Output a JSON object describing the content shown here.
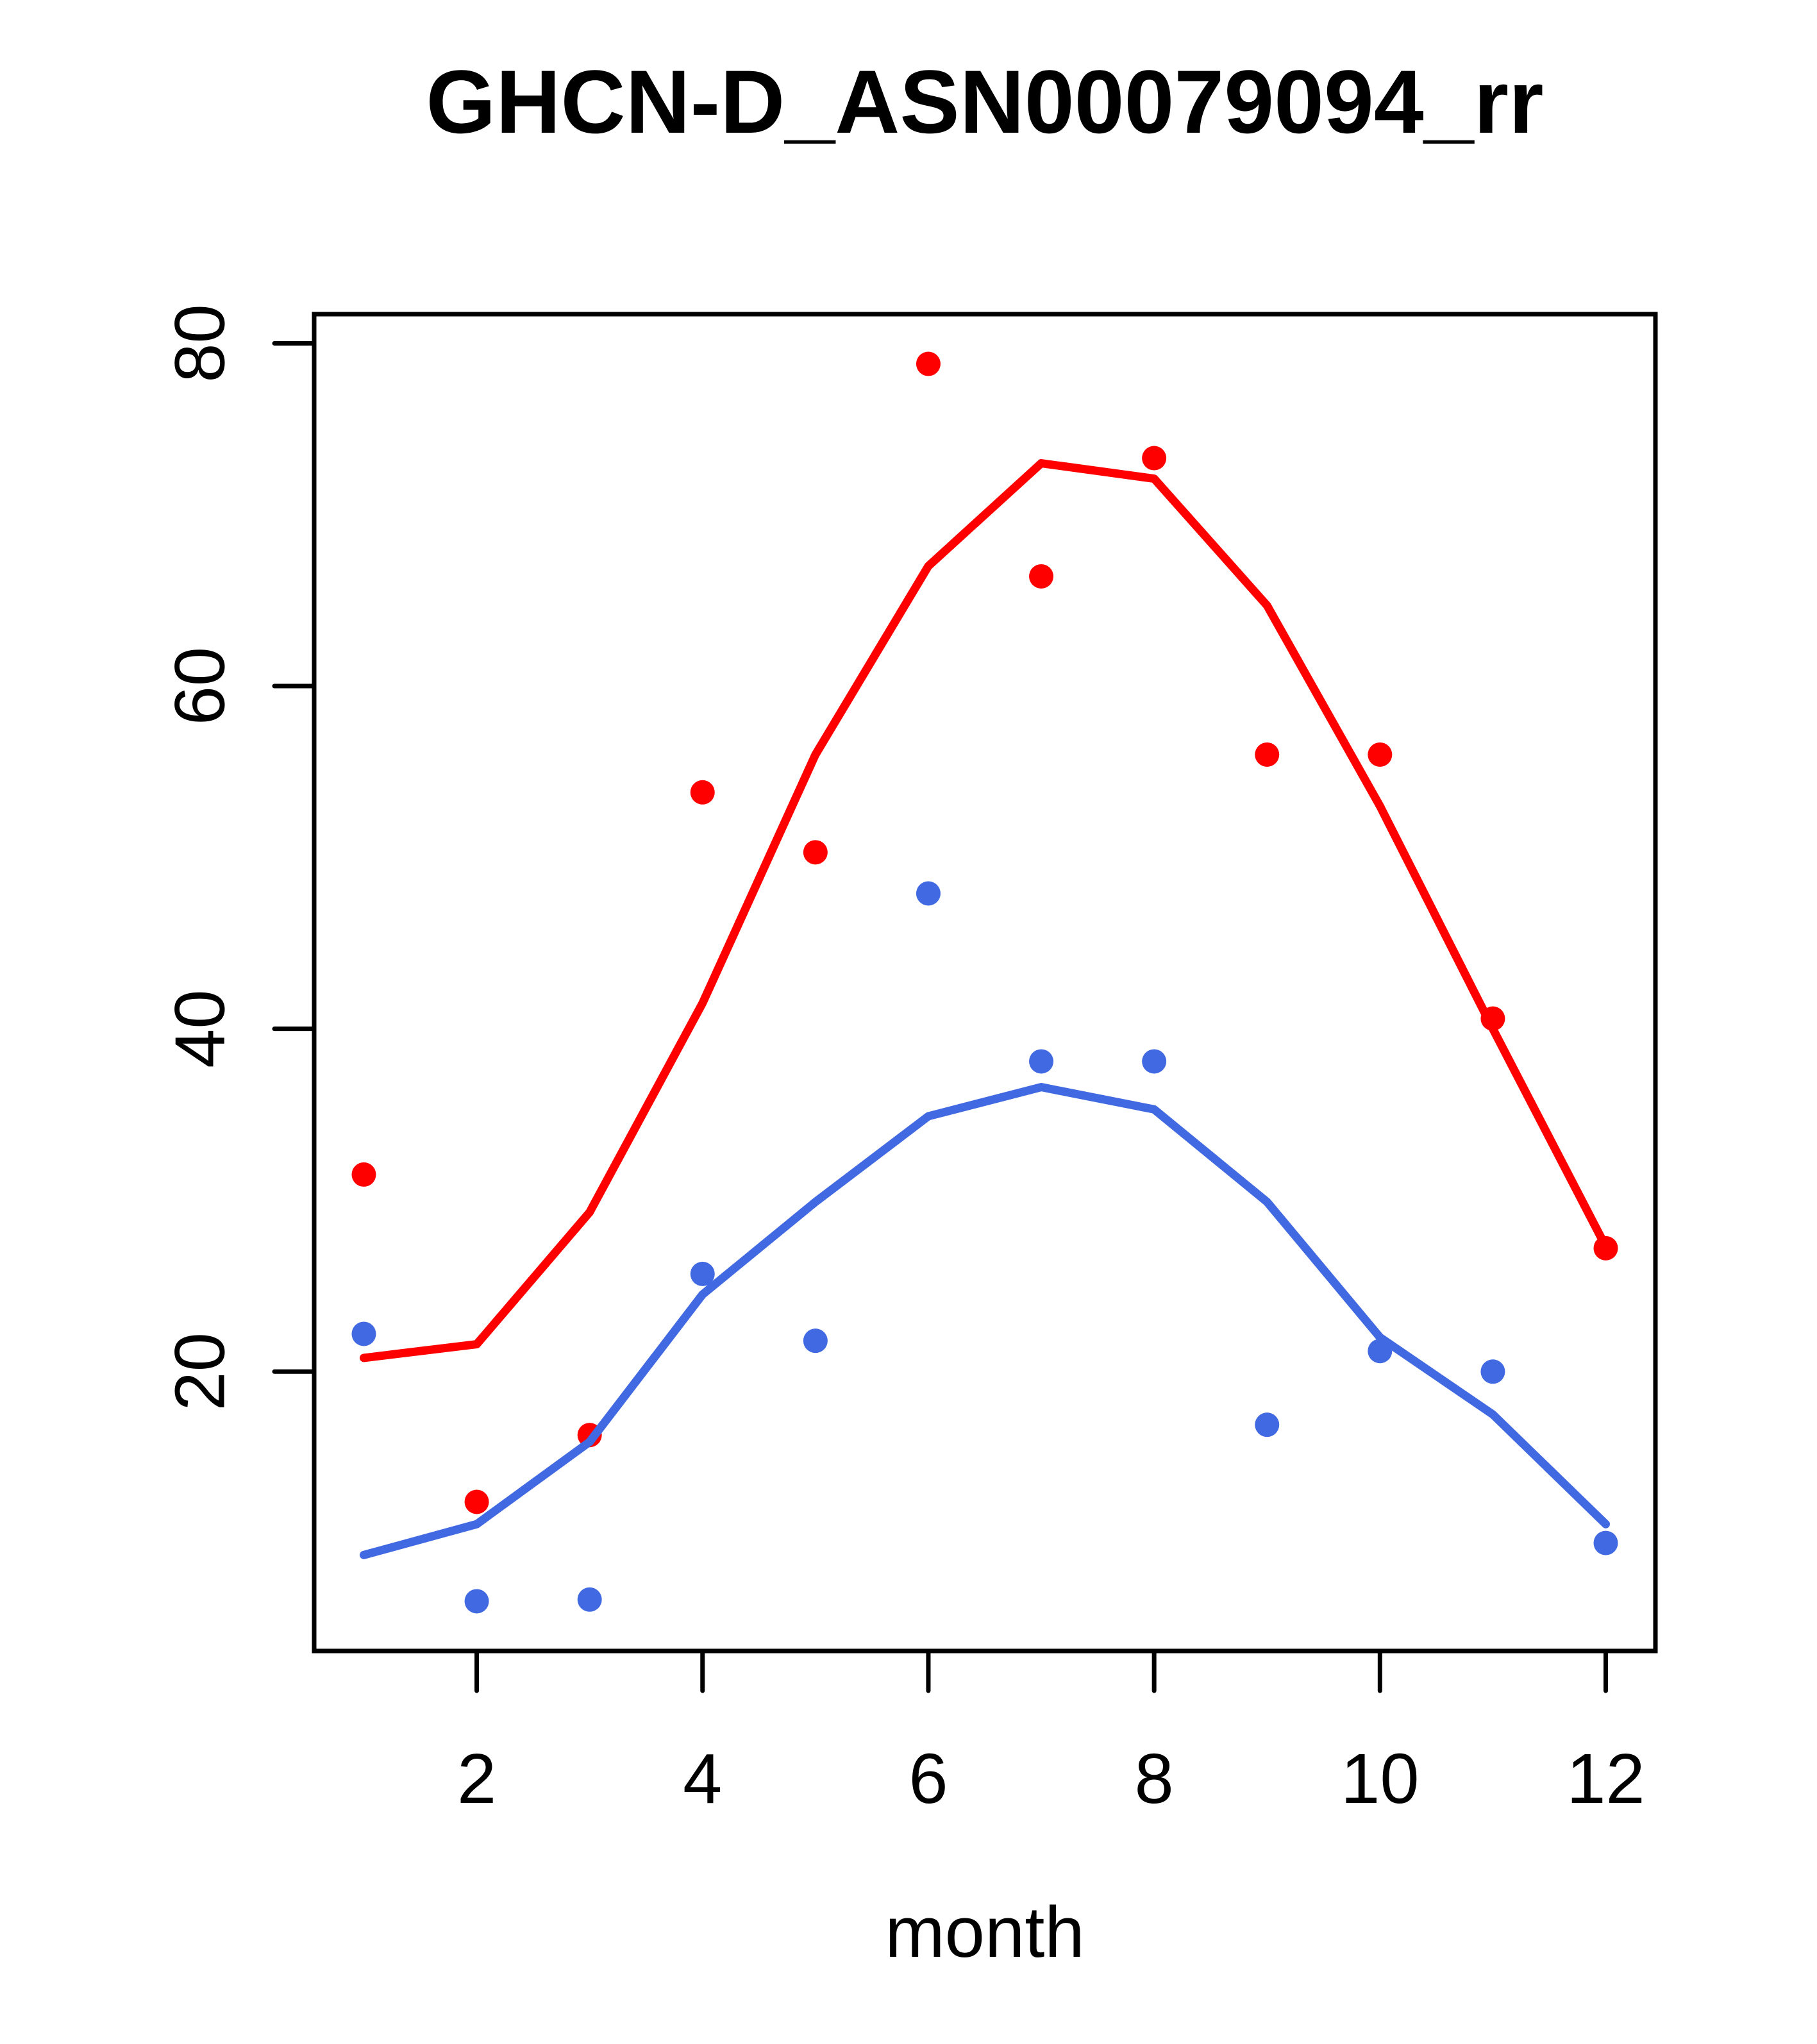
{
  "chart_data": {
    "type": "scatter",
    "title": "GHCN-D_ASN00079094_rr",
    "xlabel": "month",
    "ylabel": "",
    "x": [
      1,
      2,
      3,
      4,
      5,
      6,
      7,
      8,
      9,
      10,
      11,
      12
    ],
    "xticks": [
      2,
      4,
      6,
      8,
      10,
      12
    ],
    "yticks": [
      20,
      40,
      60,
      80
    ],
    "xlim": [
      0.56,
      12.44
    ],
    "ylim": [
      3.7,
      81.7
    ],
    "grid": false,
    "legend": "none",
    "colors": {
      "red": "#ff0000",
      "blue": "#4169e1",
      "axis": "#000000"
    },
    "series": [
      {
        "name": "red-points",
        "kind": "points",
        "color": "#ff0000",
        "values": [
          31.5,
          12.4,
          16.3,
          53.8,
          50.3,
          78.8,
          66.4,
          73.3,
          56.0,
          56.0,
          40.6,
          27.2
        ]
      },
      {
        "name": "blue-points",
        "kind": "points",
        "color": "#4169e1",
        "values": [
          22.2,
          6.6,
          6.7,
          25.7,
          21.8,
          47.9,
          38.1,
          38.1,
          16.9,
          21.2,
          20.0,
          10.0
        ]
      },
      {
        "name": "red-trend-line",
        "kind": "line",
        "color": "#ff0000",
        "values": [
          20.8,
          21.6,
          29.3,
          41.5,
          56.0,
          67.0,
          73.0,
          72.1,
          64.7,
          53.0,
          40.0,
          27.3
        ]
      },
      {
        "name": "blue-trend-line",
        "kind": "line",
        "color": "#4169e1",
        "values": [
          9.3,
          11.1,
          15.9,
          24.5,
          29.9,
          34.9,
          36.6,
          35.3,
          29.9,
          22.0,
          17.5,
          11.1
        ]
      }
    ]
  }
}
